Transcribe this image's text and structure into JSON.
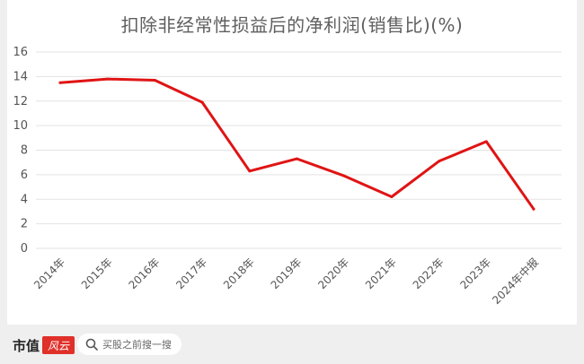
{
  "chart_data": {
    "type": "line",
    "title": "扣除非经常性损益后的净利润(销售比)(%)",
    "xlabel": "",
    "ylabel": "",
    "categories": [
      "2014年",
      "2015年",
      "2016年",
      "2017年",
      "2018年",
      "2019年",
      "2020年",
      "2021年",
      "2022年",
      "2023年",
      "2024年中报"
    ],
    "series": [
      {
        "values": [
          13.5,
          13.8,
          13.7,
          11.9,
          6.3,
          7.3,
          5.9,
          4.2,
          7.1,
          8.7,
          3.2
        ]
      }
    ],
    "ylim": [
      0,
      16
    ],
    "yticks": [
      "0",
      "2",
      "4",
      "6",
      "8",
      "10",
      "12",
      "14",
      "16"
    ],
    "grid": true,
    "legend": "none",
    "line_color": "#e01414",
    "grid_color": "#e3e3e3"
  },
  "footer": {
    "brand_text": "市值",
    "brand_mark": "风云",
    "search_icon": "search-icon",
    "search_text": "买股之前搜一搜"
  }
}
